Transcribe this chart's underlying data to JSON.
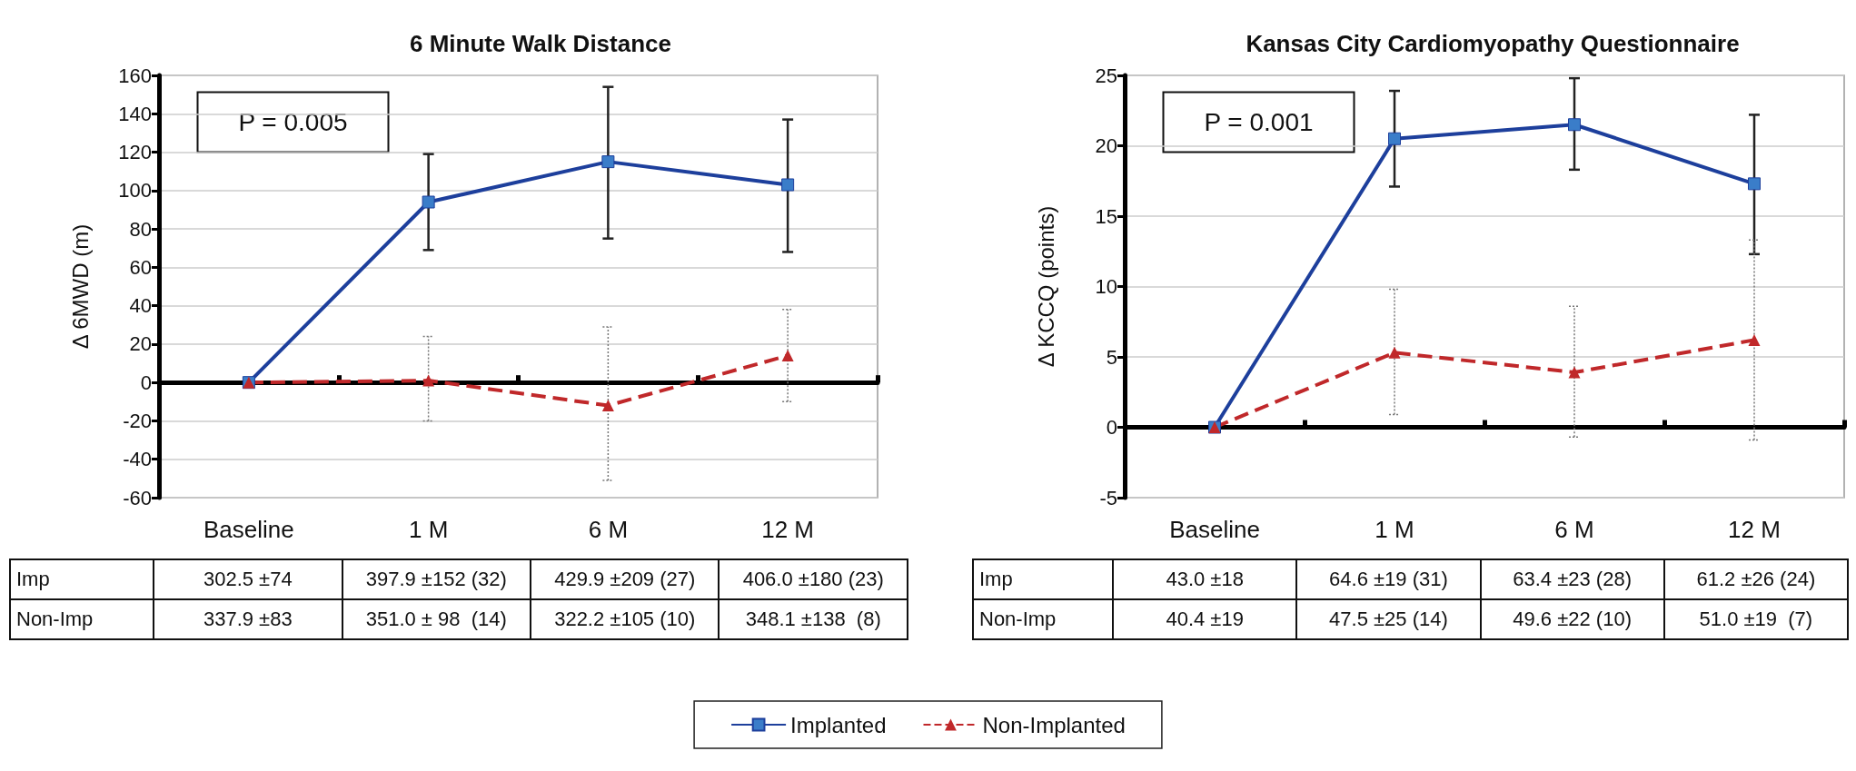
{
  "chart_data": [
    {
      "type": "line",
      "title": "6 Minute Walk Distance",
      "ylabel": "Δ 6MWD (m)",
      "categories": [
        "Baseline",
        "1 M",
        "6 M",
        "12 M"
      ],
      "series": [
        {
          "name": "Implanted",
          "color": "#1d3f9c",
          "marker": "square",
          "line_style": "solid",
          "values": [
            0,
            94,
            115,
            103
          ],
          "errors": [
            null,
            [
              69,
              119
            ],
            [
              75,
              154
            ],
            [
              68,
              137
            ]
          ]
        },
        {
          "name": "Non-Implanted",
          "color": "#c0282a",
          "marker": "triangle",
          "line_style": "dashed",
          "values": [
            0,
            1,
            -12,
            14
          ],
          "errors": [
            null,
            [
              -20,
              24
            ],
            [
              -51,
              29
            ],
            [
              -10,
              38
            ]
          ]
        }
      ],
      "ylim": [
        -60,
        160
      ],
      "yticks": [
        -60,
        -40,
        -20,
        0,
        20,
        40,
        60,
        80,
        100,
        120,
        140,
        160
      ],
      "grid": "y",
      "legend": "bottom",
      "annotations": [
        "P = 0.005",
        "Imp",
        "302.5 ±74",
        "397.9 ±152 (32)",
        "429.9 ±209 (27)",
        "406.0 ±180 (23)",
        "Non-Imp",
        "337.9 ±83",
        "351.0 ± 98  (14)",
        "322.2 ±105 (10)",
        "348.1 ±138  (8)"
      ]
    },
    {
      "type": "line",
      "title": "Kansas City Cardiomyopathy Questionnaire",
      "ylabel": "Δ KCCQ (points)",
      "categories": [
        "Baseline",
        "1 M",
        "6 M",
        "12 M"
      ],
      "series": [
        {
          "color": "#1d3f9c",
          "marker": "square",
          "line_style": "solid",
          "values": [
            0,
            20.5,
            21.5,
            17.3
          ],
          "errors": [
            null,
            [
              17.1,
              23.9
            ],
            [
              18.3,
              24.8
            ],
            [
              12.3,
              22.2
            ]
          ]
        },
        {
          "color": "#c0282a",
          "marker": "triangle",
          "line_style": "dashed",
          "values": [
            0,
            5.3,
            3.9,
            6.2
          ],
          "errors": [
            null,
            [
              0.9,
              9.8
            ],
            [
              -0.7,
              8.6
            ],
            [
              -0.9,
              13.3
            ]
          ]
        }
      ],
      "ylim": [
        -5,
        25
      ],
      "yticks": [
        -5,
        0,
        5,
        10,
        15,
        20,
        25
      ],
      "grid": "y",
      "legend": false,
      "annotations": [
        "P = 0.001",
        "Imp",
        "43.0 ±18",
        "64.6 ±19 (31)",
        "63.4 ±23 (28)",
        "61.2 ±26 (24)",
        "Non-Imp",
        "40.4 ±19",
        "47.5 ±25 (14)",
        "49.6 ±22 (10)",
        "51.0 ±19  (7)"
      ]
    }
  ]
}
